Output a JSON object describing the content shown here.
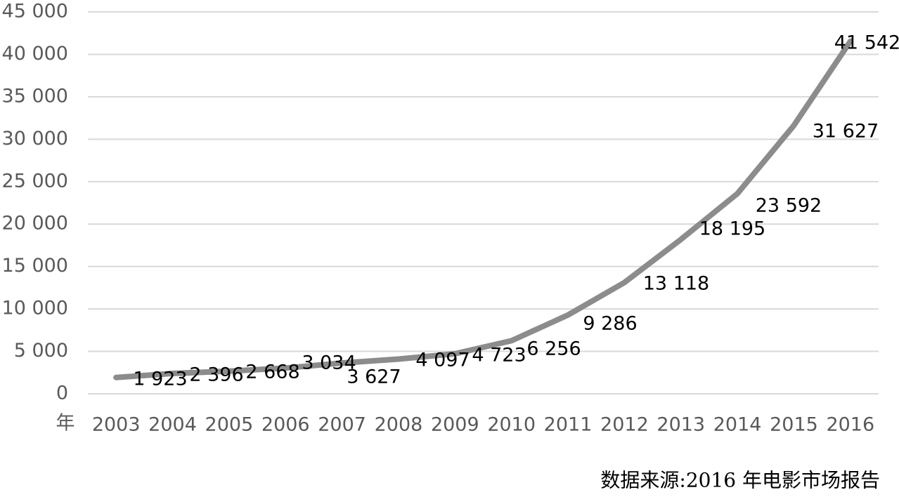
{
  "chart_data": {
    "type": "line",
    "x_label": "年",
    "source": "数据来源:2016 年电影市场报告",
    "categories": [
      "2003",
      "2004",
      "2005",
      "2006",
      "2007",
      "2008",
      "2009",
      "2010",
      "2011",
      "2012",
      "2013",
      "2014",
      "2015",
      "2016"
    ],
    "series": [
      {
        "color": "#8c8c8c",
        "values": [
          1923,
          2396,
          2668,
          3034,
          3627,
          4097,
          4723,
          6256,
          9286,
          13118,
          18195,
          23592,
          31627,
          41542
        ],
        "value_labels": [
          "1 923",
          "2 396",
          "2 668",
          "3 034",
          "3 627",
          "4 097",
          "4 723",
          "6 256",
          "9 286",
          "13 118",
          "18 195",
          "23 592",
          "31 627",
          "41 542"
        ]
      }
    ],
    "ylim": [
      0,
      45000
    ],
    "yticks": [
      0,
      {
        "value": 5000,
        "label": "5 000"
      },
      {
        "value": 10000,
        "label": "10 000"
      },
      {
        "value": 15000,
        "label": "15 000"
      },
      {
        "value": 20000,
        "label": "20 000"
      },
      {
        "value": 25000,
        "label": "25 000"
      },
      {
        "value": 30000,
        "label": "30 000"
      },
      {
        "value": 35000,
        "label": "35 000"
      },
      {
        "value": 40000,
        "label": "40 000"
      },
      {
        "value": 45000,
        "label": "45 000"
      }
    ],
    "grid": true
  }
}
